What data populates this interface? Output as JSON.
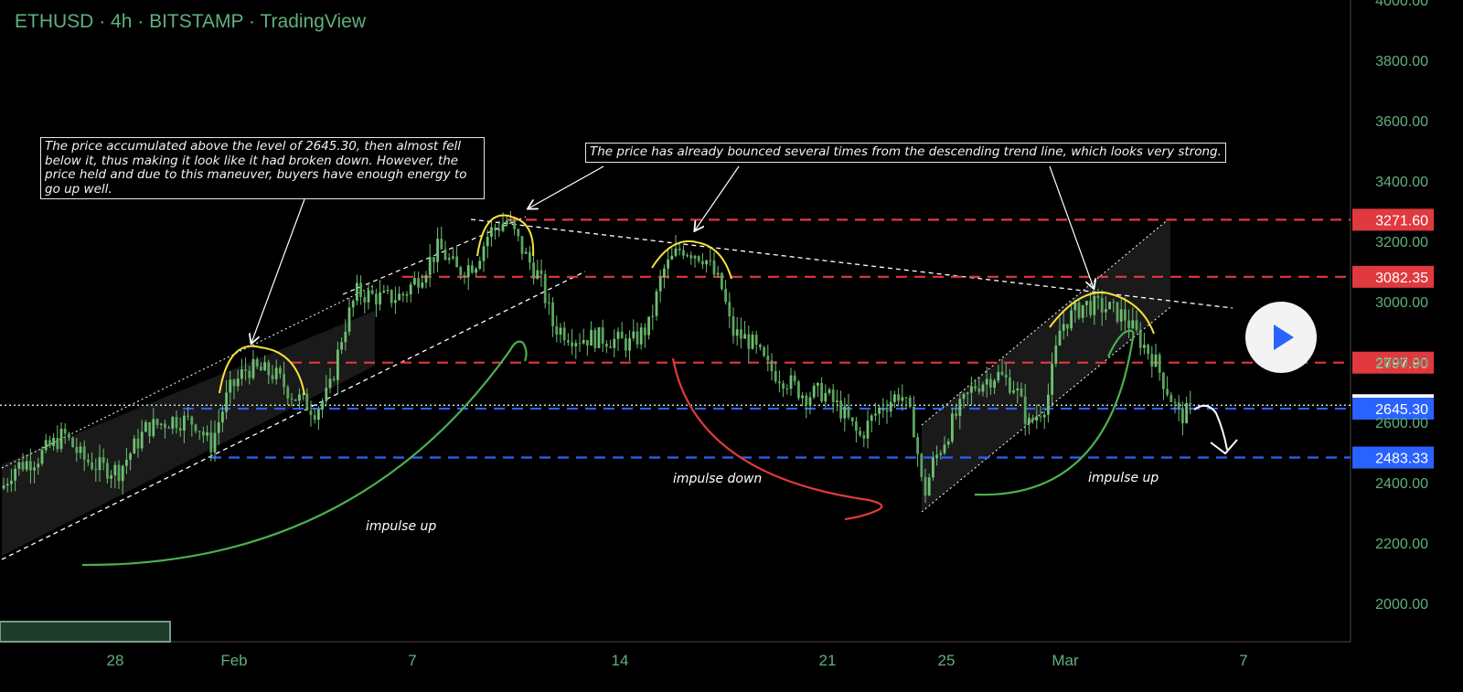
{
  "header": {
    "symbol": "ETHUSD",
    "sep1": "·",
    "interval": "4h",
    "sep2": "·",
    "exchange": "BITSTAMP",
    "sep3": "·",
    "source": "TradingView"
  },
  "annotations": {
    "note1": "The price accumulated above the level of 2645.30, then almost fell below it, thus making it look like it had broken down. However, the price held and due to this maneuver, buyers have enough energy to go up well.",
    "note2": "The price has already bounced several times from the descending trend line, which looks very strong.",
    "impulse_up_1": "impulse up",
    "impulse_down": "impulse down",
    "impulse_up_2": "impulse up"
  },
  "colors": {
    "up": "#6fbf73",
    "down": "#6fbf73",
    "red_level": "#e0393e",
    "blue_level": "#2962ff",
    "current": "#ffffff",
    "axis_text": "#5fb07c"
  },
  "chart_data": {
    "type": "candlestick",
    "yaxis_ticks": [
      2000,
      2200,
      2400,
      2600,
      2800,
      3000,
      3200,
      3400,
      3600,
      3800,
      4000
    ],
    "ylim": [
      1900,
      4000
    ],
    "xaxis_ticks": [
      "28",
      "Feb",
      "7",
      "14",
      "21",
      "25",
      "Mar",
      "7"
    ],
    "levels": [
      {
        "value": 3271.6,
        "label": "3271.60",
        "color": "#e0393e",
        "style": "dashed"
      },
      {
        "value": 3082.35,
        "label": "3082.35",
        "color": "#e0393e",
        "style": "dashed"
      },
      {
        "value": 2797.9,
        "label": "2797.90",
        "color": "#e0393e",
        "style": "dashed"
      },
      {
        "value": 2656.81,
        "label": "2656.81",
        "color": "#ffffff",
        "style": "dotted"
      },
      {
        "value": 2645.3,
        "label": "2645.30",
        "color": "#2962ff",
        "style": "dashed"
      },
      {
        "value": 2483.33,
        "label": "2483.33",
        "color": "#2962ff",
        "style": "dashed"
      }
    ],
    "price_path": [
      [
        0,
        2370
      ],
      [
        15,
        2450
      ],
      [
        40,
        2480
      ],
      [
        70,
        2560
      ],
      [
        90,
        2480
      ],
      [
        110,
        2450
      ],
      [
        130,
        2440
      ],
      [
        160,
        2580
      ],
      [
        190,
        2610
      ],
      [
        215,
        2600
      ],
      [
        230,
        2520
      ],
      [
        250,
        2700
      ],
      [
        270,
        2780
      ],
      [
        300,
        2760
      ],
      [
        320,
        2690
      ],
      [
        345,
        2640
      ],
      [
        360,
        2700
      ],
      [
        375,
        2900
      ],
      [
        390,
        3030
      ],
      [
        420,
        3010
      ],
      [
        440,
        3020
      ],
      [
        460,
        3090
      ],
      [
        480,
        3180
      ],
      [
        500,
        3100
      ],
      [
        520,
        3130
      ],
      [
        535,
        3230
      ],
      [
        555,
        3270
      ],
      [
        575,
        3150
      ],
      [
        590,
        3080
      ],
      [
        605,
        2920
      ],
      [
        630,
        2880
      ],
      [
        660,
        2880
      ],
      [
        690,
        2860
      ],
      [
        710,
        2920
      ],
      [
        725,
        3100
      ],
      [
        745,
        3180
      ],
      [
        770,
        3150
      ],
      [
        790,
        3040
      ],
      [
        800,
        2900
      ],
      [
        820,
        2870
      ],
      [
        840,
        2780
      ],
      [
        860,
        2740
      ],
      [
        880,
        2690
      ],
      [
        900,
        2700
      ],
      [
        920,
        2640
      ],
      [
        940,
        2550
      ],
      [
        960,
        2640
      ],
      [
        985,
        2700
      ],
      [
        1000,
        2580
      ],
      [
        1010,
        2350
      ],
      [
        1020,
        2460
      ],
      [
        1045,
        2620
      ],
      [
        1065,
        2720
      ],
      [
        1090,
        2760
      ],
      [
        1110,
        2720
      ],
      [
        1125,
        2590
      ],
      [
        1145,
        2670
      ],
      [
        1160,
        2920
      ],
      [
        1185,
        2990
      ],
      [
        1210,
        2980
      ],
      [
        1230,
        2950
      ],
      [
        1245,
        2880
      ],
      [
        1262,
        2810
      ],
      [
        1275,
        2720
      ],
      [
        1290,
        2620
      ],
      [
        1305,
        2640
      ]
    ]
  }
}
